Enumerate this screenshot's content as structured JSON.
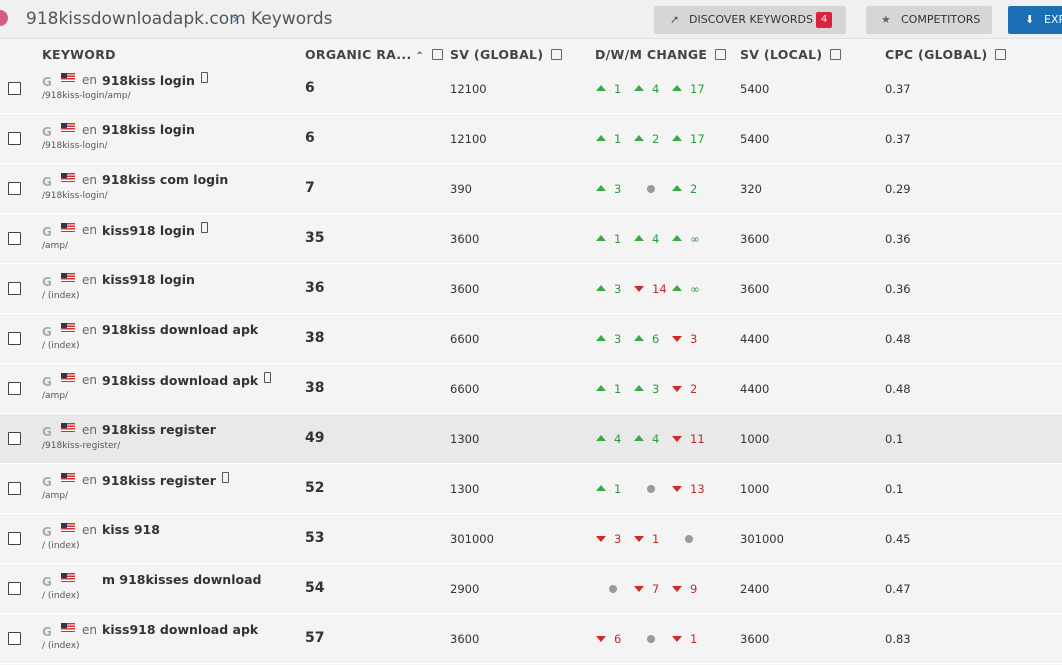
{
  "header": {
    "site": "918kissdownloadapk.com",
    "crumb": "Keywords",
    "buttons": {
      "discover": "DISCOVER KEYWORDS",
      "discover_badge": "4",
      "competitors": "COMPETITORS",
      "export": "EXP"
    }
  },
  "table": {
    "columns": [
      "KEYWORD",
      "ORGANIC RA...",
      "SV (GLOBAL)",
      "D/W/M CHANGE",
      "SV (LOCAL)",
      "CPC (GLOBAL)"
    ],
    "rows": [
      {
        "lang": "en",
        "keyword": "918kiss login",
        "mobile": true,
        "url": "/918kiss-login/amp/",
        "rank": 6,
        "sv_global": 12100,
        "changes": [
          {
            "dir": "up",
            "value": 1
          },
          {
            "dir": "up",
            "value": 4
          },
          {
            "dir": "up",
            "value": 17
          }
        ],
        "sv_local": 5400,
        "cpc": 0.37
      },
      {
        "lang": "en",
        "keyword": "918kiss login",
        "mobile": false,
        "url": "/918kiss-login/",
        "rank": 6,
        "sv_global": 12100,
        "changes": [
          {
            "dir": "up",
            "value": 1
          },
          {
            "dir": "up",
            "value": 2
          },
          {
            "dir": "up",
            "value": 17
          }
        ],
        "sv_local": 5400,
        "cpc": 0.37
      },
      {
        "lang": "en",
        "keyword": "918kiss com login",
        "mobile": false,
        "url": "/918kiss-login/",
        "rank": 7,
        "sv_global": 390,
        "changes": [
          {
            "dir": "up",
            "value": 3
          },
          {
            "dir": "none"
          },
          {
            "dir": "up",
            "value": 2
          }
        ],
        "sv_local": 320,
        "cpc": 0.29
      },
      {
        "lang": "en",
        "keyword": "kiss918 login",
        "mobile": true,
        "url": "/amp/",
        "rank": 35,
        "sv_global": 3600,
        "changes": [
          {
            "dir": "up",
            "value": 1
          },
          {
            "dir": "up",
            "value": 4
          },
          {
            "dir": "up",
            "value": "∞"
          }
        ],
        "sv_local": 3600,
        "cpc": 0.36
      },
      {
        "lang": "en",
        "keyword": "kiss918 login",
        "mobile": false,
        "url": "/ (index)",
        "rank": 36,
        "sv_global": 3600,
        "changes": [
          {
            "dir": "up",
            "value": 3
          },
          {
            "dir": "down",
            "value": 14
          },
          {
            "dir": "up",
            "value": "∞"
          }
        ],
        "sv_local": 3600,
        "cpc": 0.36
      },
      {
        "lang": "en",
        "keyword": "918kiss download apk",
        "mobile": false,
        "url": "/ (index)",
        "rank": 38,
        "sv_global": 6600,
        "changes": [
          {
            "dir": "up",
            "value": 3
          },
          {
            "dir": "up",
            "value": 6
          },
          {
            "dir": "down",
            "value": 3
          }
        ],
        "sv_local": 4400,
        "cpc": 0.48
      },
      {
        "lang": "en",
        "keyword": "918kiss download apk",
        "mobile": true,
        "url": "/amp/",
        "rank": 38,
        "sv_global": 6600,
        "changes": [
          {
            "dir": "up",
            "value": 1
          },
          {
            "dir": "up",
            "value": 3
          },
          {
            "dir": "down",
            "value": 2
          }
        ],
        "sv_local": 4400,
        "cpc": 0.48
      },
      {
        "lang": "en",
        "keyword": "918kiss register",
        "mobile": false,
        "url": "/918kiss-register/",
        "rank": 49,
        "sv_global": 1300,
        "changes": [
          {
            "dir": "up",
            "value": 4
          },
          {
            "dir": "up",
            "value": 4
          },
          {
            "dir": "down",
            "value": 11
          }
        ],
        "sv_local": 1000,
        "cpc": 0.1,
        "highlight": true
      },
      {
        "lang": "en",
        "keyword": "918kiss register",
        "mobile": true,
        "url": "/amp/",
        "rank": 52,
        "sv_global": 1300,
        "changes": [
          {
            "dir": "up",
            "value": 1
          },
          {
            "dir": "none"
          },
          {
            "dir": "down",
            "value": 13
          }
        ],
        "sv_local": 1000,
        "cpc": 0.1
      },
      {
        "lang": "en",
        "keyword": "kiss 918",
        "mobile": false,
        "url": "/ (index)",
        "rank": 53,
        "sv_global": 301000,
        "changes": [
          {
            "dir": "down",
            "value": 3
          },
          {
            "dir": "down",
            "value": 1
          },
          {
            "dir": "none"
          }
        ],
        "sv_local": 301000,
        "cpc": 0.45
      },
      {
        "keyword": "m 918kisses download",
        "mobile": false,
        "url": "/ (index)",
        "rank": 54,
        "sv_global": 2900,
        "changes": [
          {
            "dir": "none"
          },
          {
            "dir": "down",
            "value": 7
          },
          {
            "dir": "down",
            "value": 9
          }
        ],
        "sv_local": 2400,
        "cpc": 0.47
      },
      {
        "lang": "en",
        "keyword": "kiss918 download apk",
        "mobile": false,
        "url": "/ (index)",
        "rank": 57,
        "sv_global": 3600,
        "changes": [
          {
            "dir": "down",
            "value": 6
          },
          {
            "dir": "none"
          },
          {
            "dir": "down",
            "value": 1
          }
        ],
        "sv_local": 3600,
        "cpc": 0.83
      }
    ]
  }
}
